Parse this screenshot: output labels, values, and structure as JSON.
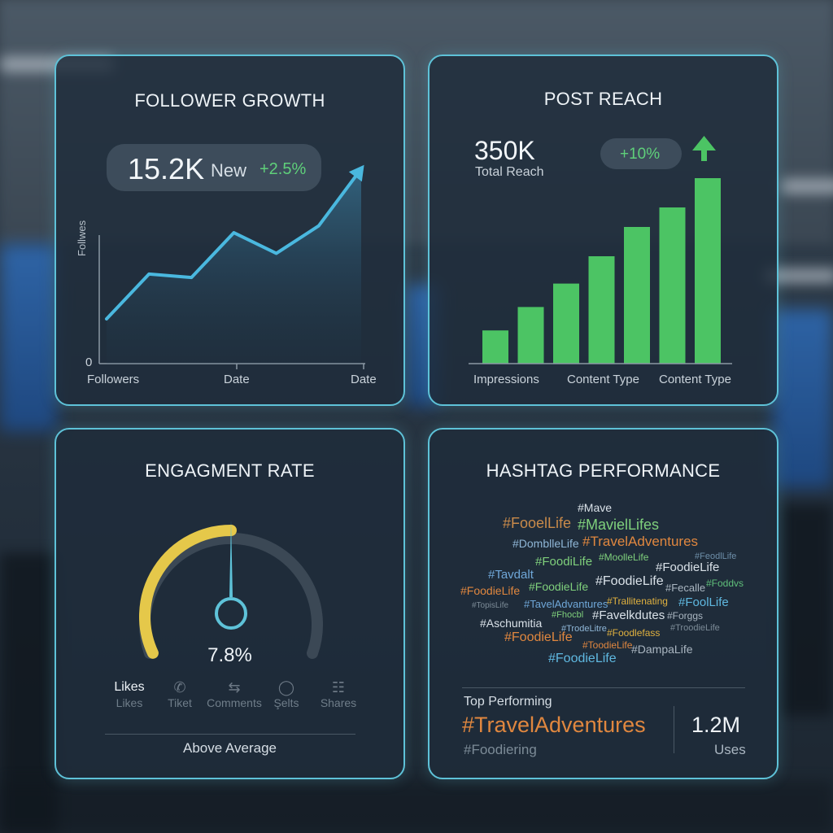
{
  "follower_growth": {
    "title": "FOLLOWER GROWTH",
    "value": "15.2K",
    "value_label": "New",
    "change": "+2.5%",
    "y_axis_label": "Follwes",
    "y_zero": "0",
    "x_labels": [
      "Followers",
      "Date",
      "Date"
    ],
    "line_color": "#4ab8df",
    "series": [
      0.08,
      0.34,
      0.32,
      0.58,
      0.46,
      0.62,
      0.95
    ]
  },
  "post_reach": {
    "title": "POST REACH",
    "value": "350K",
    "value_label": "Total Reach",
    "change": "+10%",
    "x_labels": [
      "Impressions",
      "Content Type",
      "Content Type"
    ],
    "bar_color": "#4cc464",
    "bars": [
      0.17,
      0.29,
      0.41,
      0.55,
      0.7,
      0.8,
      0.95
    ]
  },
  "engagement": {
    "title": "ENGAGMENT RATE",
    "value": "7.8%",
    "level": 0.5,
    "gauge_color": "#e5c84a",
    "legend": [
      {
        "label": "Likes",
        "sub": "Likes",
        "icon": ""
      },
      {
        "label": "",
        "sub": "Tiket",
        "icon": "✆"
      },
      {
        "label": "",
        "sub": "Comments",
        "icon": "⇆"
      },
      {
        "label": "",
        "sub": "Şelts",
        "icon": "◯"
      },
      {
        "label": "",
        "sub": "Shares",
        "icon": "☷"
      }
    ],
    "footer": "Above Average"
  },
  "hashtag": {
    "title": "HASHTAG PERFORMANCE",
    "cloud": [
      {
        "text": "#Mave",
        "color": "#d9e1e8"
      },
      {
        "text": "#FooelLife",
        "color": "#c98a4a"
      },
      {
        "text": "#MavielLifes",
        "color": "#7fd07c"
      },
      {
        "text": "#DomblleLife",
        "color": "#8fb6d6"
      },
      {
        "text": "#TravelAdventures",
        "color": "#e0873f"
      },
      {
        "text": "#FoodiLife",
        "color": "#7fd07c"
      },
      {
        "text": "#MoolleLife",
        "color": "#7fd07c"
      },
      {
        "text": "#FoodieLife",
        "color": "#d9e1e8"
      },
      {
        "text": "#FeodlLife",
        "color": "#6d8ea8"
      },
      {
        "text": "#Tavdalt",
        "color": "#6fa7d8"
      },
      {
        "text": "#FoodieLife",
        "color": "#e0873f"
      },
      {
        "text": "#FoodieLife",
        "color": "#7fd07c"
      },
      {
        "text": "#FoodieLife",
        "color": "#d9e1e8"
      },
      {
        "text": "#Fecalle",
        "color": "#aab6c1"
      },
      {
        "text": "#Foddvs",
        "color": "#5fbf7a"
      },
      {
        "text": "#TopisLife",
        "color": "#7c8b97"
      },
      {
        "text": "#TavelAdvantures",
        "color": "#6fa7d8"
      },
      {
        "text": "#Trallitenating",
        "color": "#e0b13f"
      },
      {
        "text": "#FoolLife",
        "color": "#5fb8e0"
      },
      {
        "text": "#Fhocbl",
        "color": "#7fd07c"
      },
      {
        "text": "#Favelkdutes",
        "color": "#d9e1e8"
      },
      {
        "text": "#Forggs",
        "color": "#aab6c1"
      },
      {
        "text": "#Aschumitia",
        "color": "#d9e1e8"
      },
      {
        "text": "#TrodeLitre",
        "color": "#8fb6d6"
      },
      {
        "text": "#TroodieLife",
        "color": "#7c8b97"
      },
      {
        "text": "#FoodieLife",
        "color": "#e0873f"
      },
      {
        "text": "#Foodlefass",
        "color": "#e0b13f"
      },
      {
        "text": "#ToodieLife",
        "color": "#e0873f"
      },
      {
        "text": "#DampaLife",
        "color": "#aab6c1"
      },
      {
        "text": "#FoodieLife",
        "color": "#5fb8e0"
      }
    ],
    "top_label": "Top Performing",
    "top_tag": "#TravelAdventures",
    "second_tag": "#Foodiering",
    "top_count": "1.2M",
    "top_count_label": "Uses"
  }
}
